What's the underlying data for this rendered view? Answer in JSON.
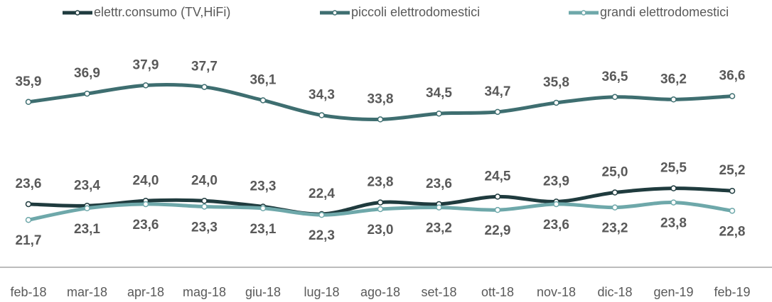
{
  "chart_data": {
    "type": "line",
    "categories": [
      "feb-18",
      "mar-18",
      "apr-18",
      "mag-18",
      "giu-18",
      "lug-18",
      "ago-18",
      "set-18",
      "ott-18",
      "nov-18",
      "dic-18",
      "gen-19",
      "feb-19"
    ],
    "ylim": [
      16,
      48
    ],
    "legend": "top",
    "series": [
      {
        "name": "elettr.consumo (TV,HiFi)",
        "color": "#1f3b3e",
        "values": [
          23.6,
          23.4,
          24.0,
          24.0,
          23.3,
          22.4,
          23.8,
          23.6,
          24.5,
          23.9,
          25.0,
          25.5,
          25.2
        ],
        "value_labels": [
          "23,6",
          "23,4",
          "24,0",
          "24,0",
          "23,3",
          "22,4",
          "23,8",
          "23,6",
          "24,5",
          "23,9",
          "25,0",
          "25,5",
          "25,2"
        ]
      },
      {
        "name": "piccoli elettrodomestici",
        "color": "#3e6e70",
        "values": [
          35.9,
          36.9,
          37.9,
          37.7,
          36.1,
          34.3,
          33.8,
          34.5,
          34.7,
          35.8,
          36.5,
          36.2,
          36.6
        ],
        "value_labels": [
          "35,9",
          "36,9",
          "37,9",
          "37,7",
          "36,1",
          "34,3",
          "33,8",
          "34,5",
          "34,7",
          "35,8",
          "36,5",
          "36,2",
          "36,6"
        ]
      },
      {
        "name": "grandi elettrodomestici",
        "color": "#6ea8aa",
        "values": [
          21.7,
          23.1,
          23.6,
          23.3,
          23.1,
          22.3,
          23.0,
          23.2,
          22.9,
          23.6,
          23.2,
          23.8,
          22.8
        ],
        "value_labels": [
          "21,7",
          "23,1",
          "23,6",
          "23,3",
          "23,1",
          "22,3",
          "23,0",
          "23,2",
          "22,9",
          "23,6",
          "23,2",
          "23,8",
          "22,8"
        ]
      }
    ]
  }
}
